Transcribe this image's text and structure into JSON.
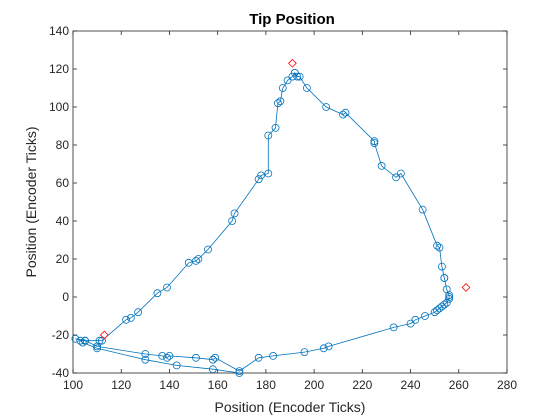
{
  "chart_data": {
    "type": "scatter",
    "title": "Tip Position",
    "xlabel": "Position (Encoder Ticks)",
    "ylabel": "Position (Encoder Ticks)",
    "xlim": [
      100,
      280
    ],
    "ylim": [
      -40,
      140
    ],
    "xticks": [
      100,
      120,
      140,
      160,
      180,
      200,
      220,
      240,
      260,
      280
    ],
    "yticks": [
      -40,
      -20,
      0,
      20,
      40,
      60,
      80,
      100,
      120,
      140
    ],
    "grid": false,
    "line_color": "#0072BD",
    "marker_color": "#0072BD",
    "target_color": "#FF0000",
    "series": [
      {
        "marker": "circle",
        "x": [
          101,
          105,
          111,
          112,
          122,
          124,
          127,
          135,
          139,
          148,
          151,
          152,
          156,
          166,
          167,
          177,
          178,
          181,
          181,
          184,
          185,
          186,
          187,
          189,
          191,
          192,
          193,
          194,
          197,
          205,
          212,
          213,
          225,
          225,
          228,
          234,
          236,
          245,
          251,
          252,
          253,
          254,
          254,
          255,
          256,
          256,
          256,
          255,
          254,
          253,
          252,
          251,
          250,
          246,
          242,
          240,
          233,
          206,
          204,
          196,
          183,
          177,
          169,
          159,
          158,
          151,
          140,
          139,
          137,
          130,
          110,
          105,
          103,
          104,
          110,
          130,
          143,
          158,
          169
        ],
        "y": [
          -22,
          -23,
          -23,
          -23,
          -12,
          -11,
          -8,
          2,
          5,
          18,
          19,
          20,
          25,
          40,
          44,
          62,
          64,
          65,
          85,
          89,
          102,
          103,
          110,
          114,
          116,
          118,
          116,
          116,
          110,
          100,
          96,
          97,
          82,
          81,
          69,
          63,
          65,
          46,
          27,
          26,
          16,
          10,
          10,
          4,
          1,
          0,
          -1,
          -3,
          -4,
          -5,
          -6,
          -7,
          -8,
          -10,
          -12,
          -14,
          -16,
          -26,
          -27,
          -29,
          -31,
          -32,
          -39,
          -32,
          -33,
          -32,
          -31,
          -32,
          -31,
          -30,
          -26,
          -23,
          -23,
          -24,
          -27,
          -33,
          -36,
          -38,
          -40
        ]
      },
      {
        "marker": "diamond",
        "x": [
          113,
          191,
          263
        ],
        "y": [
          -20,
          123,
          5
        ]
      }
    ]
  }
}
